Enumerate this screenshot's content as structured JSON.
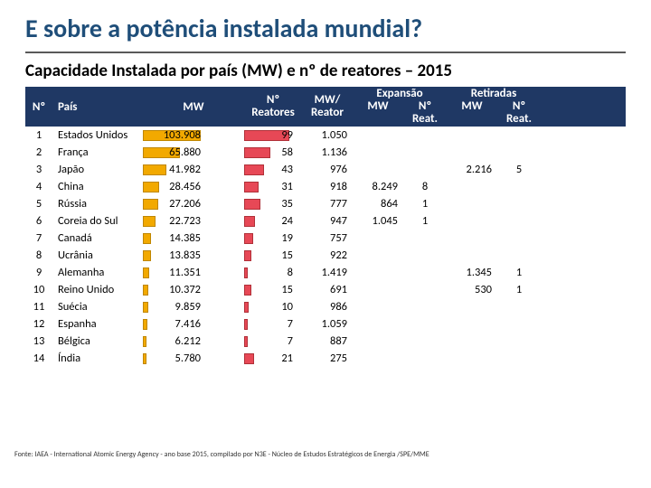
{
  "title": "E sobre a potência instalada mundial?",
  "subtitle": "Capacidade Instalada por país (MW) e nº de reatores – 2015",
  "colors": {
    "title": "#1f4e79",
    "header_bg": "#1f3864",
    "header_fg": "#ffffff",
    "bar_mw_fill": "#f2a900",
    "bar_mw_border": "#bf8600",
    "bar_react_fill": "#e74856",
    "bar_react_border": "#b03038",
    "underline": "#595959"
  },
  "headers": {
    "n": "Nº",
    "pais": "País",
    "mw": "MW",
    "react_line1": "Nº",
    "react_line2": "Reatores",
    "mwper_line1": "MW/",
    "mwper_line2": "Reator",
    "expansao": "Expansão",
    "exp_mw": "MW",
    "exp_n_line1": "Nº",
    "exp_n_line2": "Reat.",
    "retiradas": "Retiradas",
    "ret_mw": "MW",
    "ret_n_line1": "Nº",
    "ret_n_line2": "Reat."
  },
  "max_mw": 103908,
  "max_react": 99,
  "rows": [
    {
      "n": 1,
      "pais": "Estados Unidos",
      "mw": "103.908",
      "mw_v": 103908,
      "react": "99",
      "react_v": 99,
      "mwper": "1.050",
      "exp_mw": "",
      "exp_n": "",
      "ret_mw": "",
      "ret_n": ""
    },
    {
      "n": 2,
      "pais": "França",
      "mw": "65.880",
      "mw_v": 65880,
      "react": "58",
      "react_v": 58,
      "mwper": "1.136",
      "exp_mw": "",
      "exp_n": "",
      "ret_mw": "",
      "ret_n": ""
    },
    {
      "n": 3,
      "pais": "Japão",
      "mw": "41.982",
      "mw_v": 41982,
      "react": "43",
      "react_v": 43,
      "mwper": "976",
      "exp_mw": "",
      "exp_n": "",
      "ret_mw": "2.216",
      "ret_n": "5"
    },
    {
      "n": 4,
      "pais": "China",
      "mw": "28.456",
      "mw_v": 28456,
      "react": "31",
      "react_v": 31,
      "mwper": "918",
      "exp_mw": "8.249",
      "exp_n": "8",
      "ret_mw": "",
      "ret_n": ""
    },
    {
      "n": 5,
      "pais": "Rússia",
      "mw": "27.206",
      "mw_v": 27206,
      "react": "35",
      "react_v": 35,
      "mwper": "777",
      "exp_mw": "864",
      "exp_n": "1",
      "ret_mw": "",
      "ret_n": ""
    },
    {
      "n": 6,
      "pais": "Coreia do Sul",
      "mw": "22.723",
      "mw_v": 22723,
      "react": "24",
      "react_v": 24,
      "mwper": "947",
      "exp_mw": "1.045",
      "exp_n": "1",
      "ret_mw": "",
      "ret_n": ""
    },
    {
      "n": 7,
      "pais": "Canadá",
      "mw": "14.385",
      "mw_v": 14385,
      "react": "19",
      "react_v": 19,
      "mwper": "757",
      "exp_mw": "",
      "exp_n": "",
      "ret_mw": "",
      "ret_n": ""
    },
    {
      "n": 8,
      "pais": "Ucrânia",
      "mw": "13.835",
      "mw_v": 13835,
      "react": "15",
      "react_v": 15,
      "mwper": "922",
      "exp_mw": "",
      "exp_n": "",
      "ret_mw": "",
      "ret_n": ""
    },
    {
      "n": 9,
      "pais": "Alemanha",
      "mw": "11.351",
      "mw_v": 11351,
      "react": "8",
      "react_v": 8,
      "mwper": "1.419",
      "exp_mw": "",
      "exp_n": "",
      "ret_mw": "1.345",
      "ret_n": "1"
    },
    {
      "n": 10,
      "pais": "Reino Unido",
      "mw": "10.372",
      "mw_v": 10372,
      "react": "15",
      "react_v": 15,
      "mwper": "691",
      "exp_mw": "",
      "exp_n": "",
      "ret_mw": "530",
      "ret_n": "1"
    },
    {
      "n": 11,
      "pais": "Suécia",
      "mw": "9.859",
      "mw_v": 9859,
      "react": "10",
      "react_v": 10,
      "mwper": "986",
      "exp_mw": "",
      "exp_n": "",
      "ret_mw": "",
      "ret_n": ""
    },
    {
      "n": 12,
      "pais": "Espanha",
      "mw": "7.416",
      "mw_v": 7416,
      "react": "7",
      "react_v": 7,
      "mwper": "1.059",
      "exp_mw": "",
      "exp_n": "",
      "ret_mw": "",
      "ret_n": ""
    },
    {
      "n": 13,
      "pais": "Bélgica",
      "mw": "6.212",
      "mw_v": 6212,
      "react": "7",
      "react_v": 7,
      "mwper": "887",
      "exp_mw": "",
      "exp_n": "",
      "ret_mw": "",
      "ret_n": ""
    },
    {
      "n": 14,
      "pais": "Índia",
      "mw": "5.780",
      "mw_v": 5780,
      "react": "21",
      "react_v": 21,
      "mwper": "275",
      "exp_mw": "",
      "exp_n": "",
      "ret_mw": "",
      "ret_n": ""
    }
  ],
  "footnote": "Fonte: IAEA - International Atomic Energy Agency - ano base 2015, compilado por N3E - Núcleo de Estudos Estratégicos de Energia /SPE/MME"
}
